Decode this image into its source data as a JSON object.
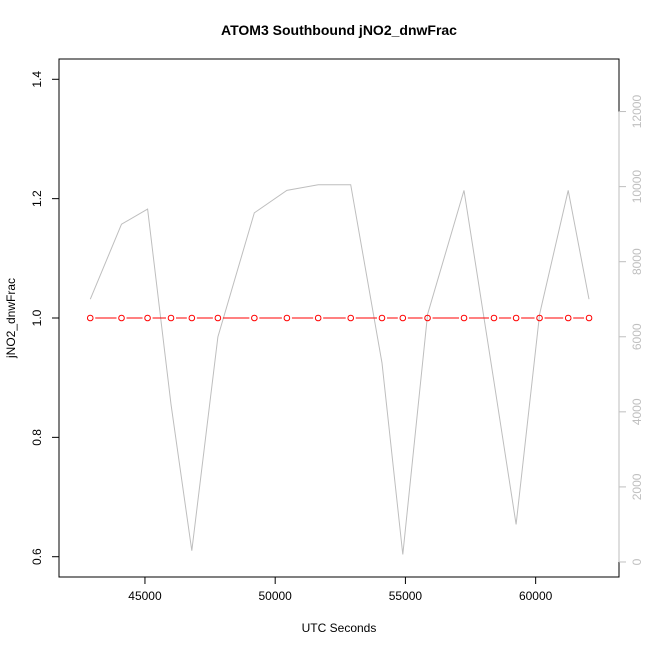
{
  "chart_data": {
    "type": "line",
    "title": "ATOM3 Southbound jNO2_dnwFrac",
    "xlabel": "UTC Seconds",
    "ylabel": "jNO2_dnwFrac",
    "xlim": [
      41700,
      63200
    ],
    "ylim": [
      0.566,
      1.434
    ],
    "y2lim": [
      -400,
      13400
    ],
    "x_ticks": [
      45000,
      50000,
      55000,
      60000
    ],
    "y_ticks": [
      0.6,
      0.8,
      1.0,
      1.2,
      1.4
    ],
    "y2_ticks": [
      0,
      2000,
      4000,
      6000,
      8000,
      10000,
      12000
    ],
    "grid": false,
    "legend": "none",
    "colors": {
      "primary_series": "#ff0000",
      "secondary_series": "#bebebe",
      "secondary_axis": "#bebebe"
    },
    "series": [
      {
        "axis": "left",
        "style": "line-with-open-circles",
        "x": [
          42900,
          44100,
          45100,
          46000,
          46800,
          47800,
          49200,
          50450,
          51650,
          52900,
          54100,
          54900,
          55850,
          57250,
          58400,
          59250,
          60150,
          61250,
          62050
        ],
        "y": [
          1.0,
          1.0,
          1.0,
          1.0,
          1.0,
          1.0,
          1.0,
          1.0,
          1.0,
          1.0,
          1.0,
          1.0,
          1.0,
          1.0,
          1.0,
          1.0,
          1.0,
          1.0,
          1.0
        ]
      },
      {
        "axis": "right",
        "style": "line",
        "x": [
          42900,
          44100,
          45100,
          46000,
          46800,
          47800,
          49200,
          50450,
          51650,
          52900,
          54100,
          54900,
          55850,
          57250,
          58400,
          59250,
          60150,
          61250,
          62050
        ],
        "y": [
          7000,
          9000,
          9400,
          4200,
          300,
          6000,
          9300,
          9900,
          10050,
          10050,
          5300,
          200,
          6600,
          9900,
          4800,
          1000,
          6600,
          9900,
          7000
        ]
      }
    ]
  }
}
